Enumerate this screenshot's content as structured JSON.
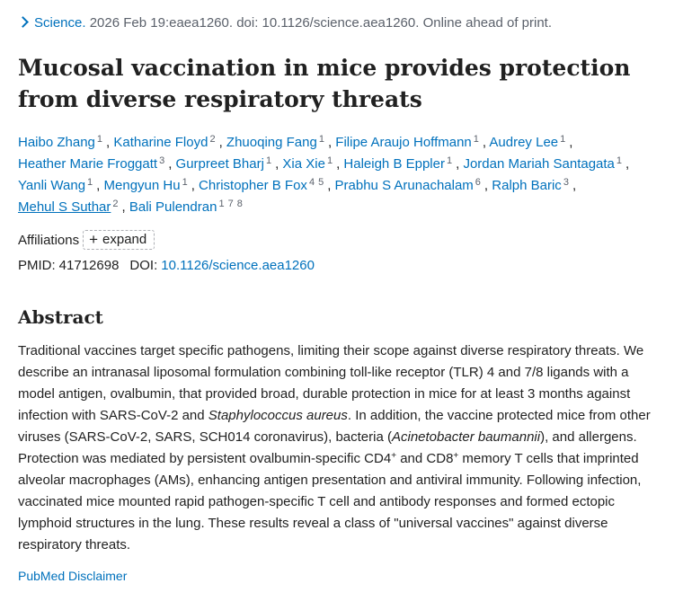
{
  "citation": {
    "journal": "Science.",
    "details": "2026 Feb 19:eaea1260. doi: 10.1126/science.aea1260. Online ahead of print."
  },
  "title": "Mucosal vaccination in mice provides protection from diverse respiratory threats",
  "authors": [
    {
      "name": "Haibo Zhang",
      "aff": [
        "1"
      ]
    },
    {
      "name": "Katharine Floyd",
      "aff": [
        "2"
      ]
    },
    {
      "name": "Zhuoqing Fang",
      "aff": [
        "1"
      ]
    },
    {
      "name": "Filipe Araujo Hoffmann",
      "aff": [
        "1"
      ]
    },
    {
      "name": "Audrey Lee",
      "aff": [
        "1"
      ]
    },
    {
      "name": "Heather Marie Froggatt",
      "aff": [
        "3"
      ]
    },
    {
      "name": "Gurpreet Bharj",
      "aff": [
        "1"
      ]
    },
    {
      "name": "Xia Xie",
      "aff": [
        "1"
      ]
    },
    {
      "name": "Haleigh B Eppler",
      "aff": [
        "1"
      ]
    },
    {
      "name": "Jordan Mariah Santagata",
      "aff": [
        "1"
      ]
    },
    {
      "name": "Yanli Wang",
      "aff": [
        "1"
      ]
    },
    {
      "name": "Mengyun Hu",
      "aff": [
        "1"
      ]
    },
    {
      "name": "Christopher B Fox",
      "aff": [
        "4",
        "5"
      ]
    },
    {
      "name": "Prabhu S Arunachalam",
      "aff": [
        "6"
      ]
    },
    {
      "name": "Ralph Baric",
      "aff": [
        "3"
      ]
    },
    {
      "name": "Mehul S Suthar",
      "aff": [
        "2"
      ],
      "underlined": true
    },
    {
      "name": "Bali Pulendran",
      "aff": [
        "1",
        "7",
        "8"
      ]
    }
  ],
  "affiliations": {
    "label": "Affiliations",
    "expand_label": "expand"
  },
  "ids": {
    "pmid_label": "PMID:",
    "pmid": "41712698",
    "doi_label": "DOI:",
    "doi": "10.1126/science.aea1260"
  },
  "abstract": {
    "heading": "Abstract",
    "p1": "Traditional vaccines target specific pathogens, limiting their scope against diverse respiratory threats. We describe an intranasal liposomal formulation combining toll-like receptor (TLR) 4 and 7/8 ligands with a model antigen, ovalbumin, that provided broad, durable protection in mice for at least 3 months against infection with SARS-CoV-2 and ",
    "organism1": "Staphylococcus aureus",
    "p2": ". In addition, the vaccine protected mice from other viruses (SARS-CoV-2, SARS, SCH014 coronavirus), bacteria (",
    "organism2": "Acinetobacter baumannii",
    "p3": "), and allergens. Protection was mediated by persistent ovalbumin-specific CD4",
    "sup1": "+",
    "p4": " and CD8",
    "sup2": "+",
    "p5": " memory T cells that imprinted alveolar macrophages (AMs), enhancing antigen presentation and antiviral immunity. Following infection, vaccinated mice mounted rapid pathogen-specific T cell and antibody responses and formed ectopic lymphoid structures in the lung. These results reveal a class of \"universal vaccines\" against diverse respiratory threats."
  },
  "disclaimer": "PubMed Disclaimer",
  "colors": {
    "link": "#0071bc",
    "text": "#212121",
    "muted": "#5b616b"
  },
  "icons": {
    "citation": "chevron-right-icon",
    "expand": "plus-icon"
  }
}
